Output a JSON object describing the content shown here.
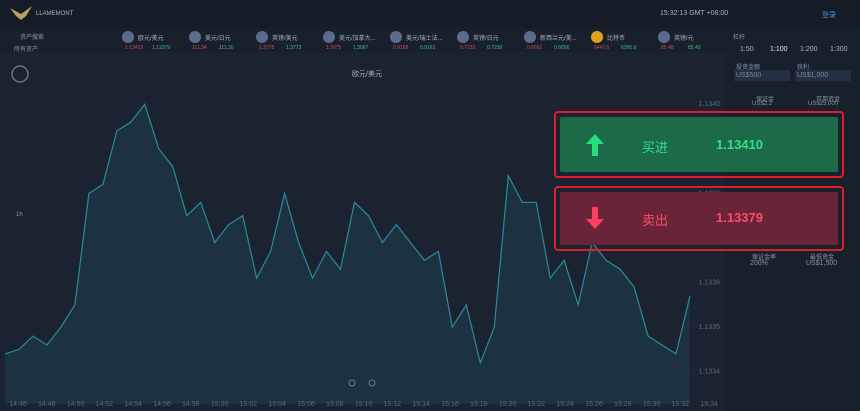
{
  "header": {
    "logo": "LLAMEMONT",
    "clock": "15:32:13 GMT +08:00",
    "login": "登录"
  },
  "sidebar": {
    "search": "资产搜索",
    "filter": "所有资产"
  },
  "tickers": [
    {
      "name": "欧元/美元",
      "bid": "1.13413",
      "ask": "1.13379"
    },
    {
      "name": "美元/日元",
      "bid": "111.34",
      "ask": "111.30"
    },
    {
      "name": "英镑/美元",
      "bid": "1.3775",
      "ask": "1.3773"
    },
    {
      "name": "美元/加拿大...",
      "bid": "1.3075",
      "ask": "1.3067"
    },
    {
      "name": "美元/瑞士法...",
      "bid": "0.9168",
      "ask": "0.9163"
    },
    {
      "name": "英镑/日元",
      "bid": "0.7232",
      "ask": "0.7230"
    },
    {
      "name": "新西兰元/美...",
      "bid": "0.6661",
      "ask": "0.6656"
    },
    {
      "name": "比特币",
      "bid": "6447.5",
      "ask": "6395.6"
    },
    {
      "name": "英镑/元",
      "bid": "85.48",
      "ask": "85.40"
    }
  ],
  "price_chart": {
    "title": "欧元/美元",
    "interval": "1h",
    "ylim": [
      1.13335,
      1.13405
    ],
    "yticks": [
      1.1334,
      1.1335,
      1.1336,
      1.1337,
      1.1338,
      1.1339,
      {
        "value": 1.134,
        "label": "1.1340"
      }
    ],
    "values": [
      1.13344,
      1.13345,
      1.13348,
      1.13346,
      1.1335,
      1.13355,
      1.1338,
      1.13382,
      1.13394,
      1.13396,
      1.134,
      1.1339,
      1.13386,
      1.13375,
      1.13378,
      1.13369,
      1.13373,
      1.13375,
      1.13361,
      1.13367,
      1.1338,
      1.13369,
      1.13361,
      1.13367,
      1.13363,
      1.13378,
      1.13375,
      1.13369,
      1.13373,
      1.13369,
      1.13365,
      1.13367,
      1.1335,
      1.13355,
      1.13342,
      1.1335,
      1.13384,
      1.13378,
      1.13378,
      1.13361,
      1.13365,
      1.13355,
      1.13369,
      1.13365,
      1.13363,
      1.13359,
      1.13348,
      1.13346,
      1.13344,
      1.13357
    ],
    "x_labels": [
      "14:46",
      "14:48",
      "14:50",
      "14:52",
      "14:54",
      "14:56",
      "14:58",
      "15:00",
      "15:02",
      "15:04",
      "15:06",
      "15:08",
      "15:10",
      "15:12",
      "15:14",
      "15:16",
      "15:18",
      "15:20",
      "15:22",
      "15:24",
      "15:26",
      "15:28",
      "15:30",
      "15:32",
      "15:34"
    ]
  },
  "trade_panel": {
    "leverage_label": "杠杆",
    "leverage_options": [
      "1:50",
      "1:100",
      "1:200",
      "1:300"
    ],
    "invest_label": "投资金额",
    "invest_value": "US$500",
    "profit_label": "获利",
    "profit_value": "US$1,000",
    "margin_label": "保证金",
    "margin_value": "US$2.2",
    "funds_label": "可用资金",
    "funds_value": "US$25,000",
    "buy_label": "买进",
    "buy_price": "1.13410",
    "sell_label": "卖出",
    "sell_price": "1.13379",
    "ratio_label": "保证金率",
    "ratio_value": "200%",
    "min_label": "最低资金",
    "min_value": "US$1,500"
  }
}
